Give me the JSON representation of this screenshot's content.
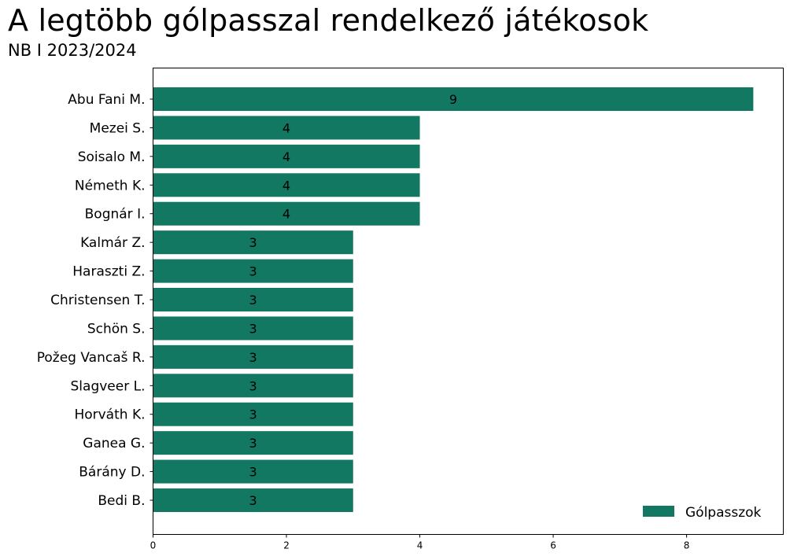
{
  "chart_data": {
    "type": "bar",
    "orientation": "horizontal",
    "title": "A legtöbb gólpasszal rendelkező játékosok",
    "subtitle": "NB I 2023/2024",
    "categories": [
      "Abu Fani M.",
      "Mezei S.",
      "Soisalo M.",
      "Németh K.",
      "Bognár I.",
      "Kalmár Z.",
      "Haraszti Z.",
      "Christensen T.",
      "Schön S.",
      "Požeg Vancaš R.",
      "Slagveer L.",
      "Horváth K.",
      "Ganea G.",
      "Bárány D.",
      "Bedi B."
    ],
    "series": [
      {
        "name": "Gólpasszok",
        "values": [
          9,
          4,
          4,
          4,
          4,
          3,
          3,
          3,
          3,
          3,
          3,
          3,
          3,
          3,
          3
        ],
        "color": "#137862"
      }
    ],
    "xlim": [
      0,
      9.45
    ],
    "xticks": [
      0,
      2,
      4,
      6,
      8
    ],
    "legend_position": "bottom-right",
    "grid": false
  }
}
